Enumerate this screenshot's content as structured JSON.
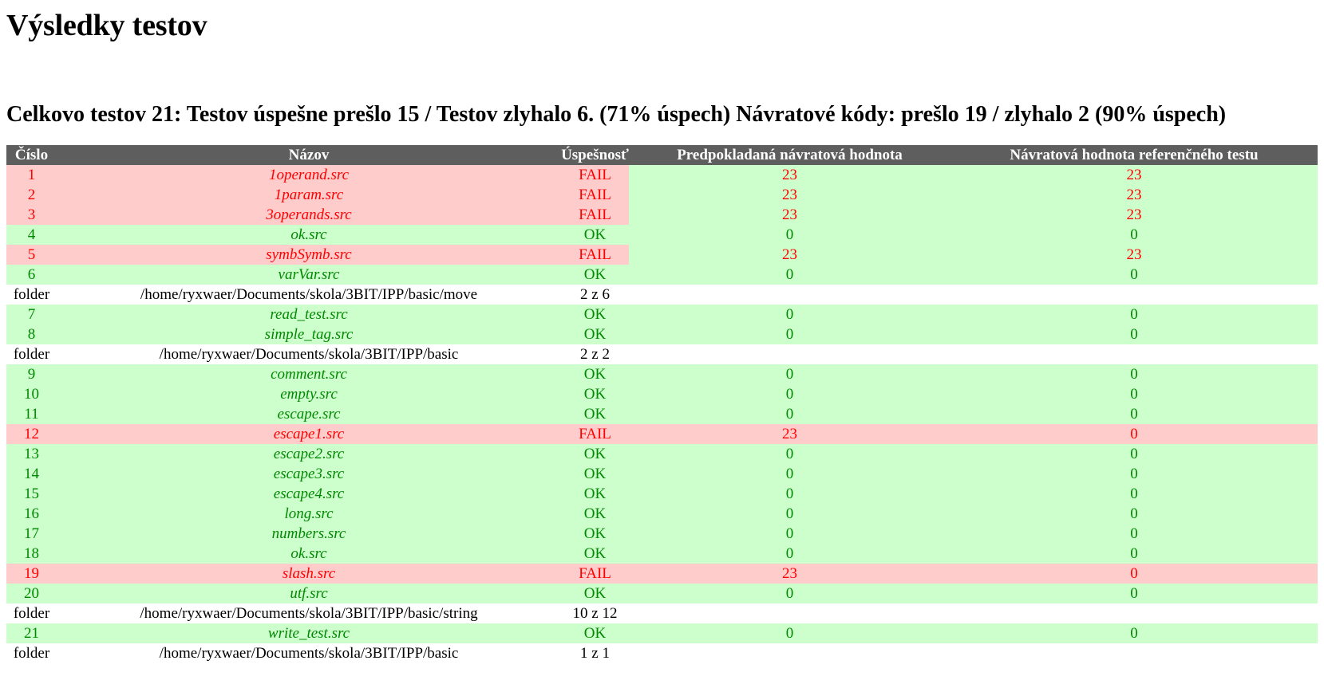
{
  "page": {
    "title": "Výsledky testov",
    "summary": "Celkovo testov 21: Testov úspešne prešlo 15 / Testov zlyhalo 6. (71% úspech) Návratové kódy: prešlo 19 / zlyhalo 2 (90% úspech)"
  },
  "table": {
    "headers": [
      "Číslo",
      "Názov",
      "Úspešnosť",
      "Predpokladaná návratová hodnota",
      "Návratová hodnota referenčného testu"
    ],
    "rows": [
      {
        "kind": "test",
        "num": "1",
        "name": "1operand.src",
        "status": "FAIL",
        "expected": "23",
        "ref": "23",
        "rc_ok": true
      },
      {
        "kind": "test",
        "num": "2",
        "name": "1param.src",
        "status": "FAIL",
        "expected": "23",
        "ref": "23",
        "rc_ok": true
      },
      {
        "kind": "test",
        "num": "3",
        "name": "3operands.src",
        "status": "FAIL",
        "expected": "23",
        "ref": "23",
        "rc_ok": true
      },
      {
        "kind": "test",
        "num": "4",
        "name": "ok.src",
        "status": "OK",
        "expected": "0",
        "ref": "0",
        "rc_ok": true
      },
      {
        "kind": "test",
        "num": "5",
        "name": "symbSymb.src",
        "status": "FAIL",
        "expected": "23",
        "ref": "23",
        "rc_ok": true
      },
      {
        "kind": "test",
        "num": "6",
        "name": "varVar.src",
        "status": "OK",
        "expected": "0",
        "ref": "0",
        "rc_ok": true
      },
      {
        "kind": "folder",
        "num": "folder",
        "name": "/home/ryxwaer/Documents/skola/3BIT/IPP/basic/move",
        "status": "2 z 6"
      },
      {
        "kind": "test",
        "num": "7",
        "name": "read_test.src",
        "status": "OK",
        "expected": "0",
        "ref": "0",
        "rc_ok": true
      },
      {
        "kind": "test",
        "num": "8",
        "name": "simple_tag.src",
        "status": "OK",
        "expected": "0",
        "ref": "0",
        "rc_ok": true
      },
      {
        "kind": "folder",
        "num": "folder",
        "name": "/home/ryxwaer/Documents/skola/3BIT/IPP/basic",
        "status": "2 z 2"
      },
      {
        "kind": "test",
        "num": "9",
        "name": "comment.src",
        "status": "OK",
        "expected": "0",
        "ref": "0",
        "rc_ok": true
      },
      {
        "kind": "test",
        "num": "10",
        "name": "empty.src",
        "status": "OK",
        "expected": "0",
        "ref": "0",
        "rc_ok": true
      },
      {
        "kind": "test",
        "num": "11",
        "name": "escape.src",
        "status": "OK",
        "expected": "0",
        "ref": "0",
        "rc_ok": true
      },
      {
        "kind": "test",
        "num": "12",
        "name": "escape1.src",
        "status": "FAIL",
        "expected": "23",
        "ref": "0",
        "rc_ok": false
      },
      {
        "kind": "test",
        "num": "13",
        "name": "escape2.src",
        "status": "OK",
        "expected": "0",
        "ref": "0",
        "rc_ok": true
      },
      {
        "kind": "test",
        "num": "14",
        "name": "escape3.src",
        "status": "OK",
        "expected": "0",
        "ref": "0",
        "rc_ok": true
      },
      {
        "kind": "test",
        "num": "15",
        "name": "escape4.src",
        "status": "OK",
        "expected": "0",
        "ref": "0",
        "rc_ok": true
      },
      {
        "kind": "test",
        "num": "16",
        "name": "long.src",
        "status": "OK",
        "expected": "0",
        "ref": "0",
        "rc_ok": true
      },
      {
        "kind": "test",
        "num": "17",
        "name": "numbers.src",
        "status": "OK",
        "expected": "0",
        "ref": "0",
        "rc_ok": true
      },
      {
        "kind": "test",
        "num": "18",
        "name": "ok.src",
        "status": "OK",
        "expected": "0",
        "ref": "0",
        "rc_ok": true
      },
      {
        "kind": "test",
        "num": "19",
        "name": "slash.src",
        "status": "FAIL",
        "expected": "23",
        "ref": "0",
        "rc_ok": false
      },
      {
        "kind": "test",
        "num": "20",
        "name": "utf.src",
        "status": "OK",
        "expected": "0",
        "ref": "0",
        "rc_ok": true
      },
      {
        "kind": "folder",
        "num": "folder",
        "name": "/home/ryxwaer/Documents/skola/3BIT/IPP/basic/string",
        "status": "10 z 12"
      },
      {
        "kind": "test",
        "num": "21",
        "name": "write_test.src",
        "status": "OK",
        "expected": "0",
        "ref": "0",
        "rc_ok": true
      },
      {
        "kind": "folder",
        "num": "folder",
        "name": "/home/ryxwaer/Documents/skola/3BIT/IPP/basic",
        "status": "1 z 1"
      }
    ]
  },
  "colors": {
    "ok_background": "#ccffcc",
    "ok_text": "#008800",
    "fail_background": "#ffcccc",
    "fail_text": "#ff0000",
    "header_background": "#5e5e5e"
  }
}
